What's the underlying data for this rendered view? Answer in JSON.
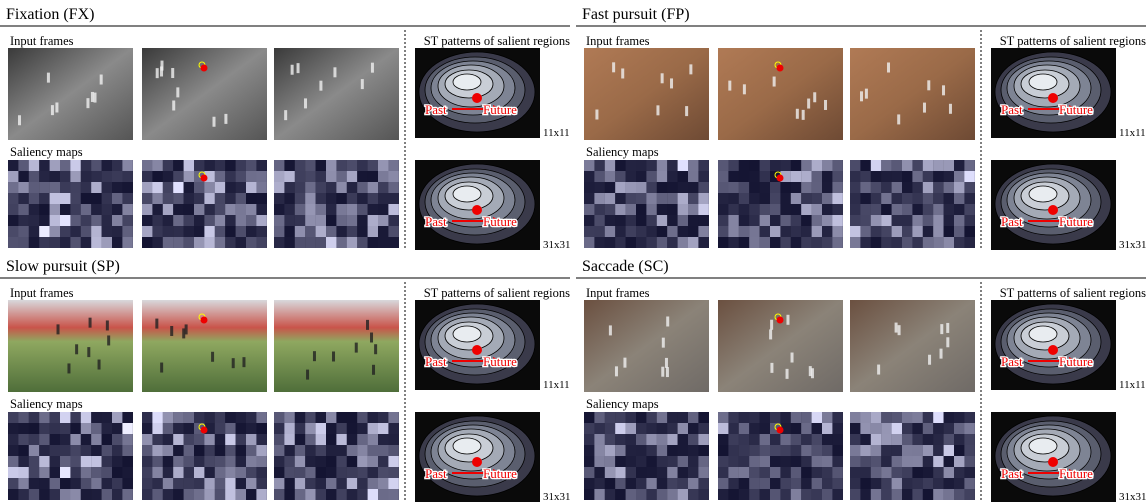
{
  "panels": [
    {
      "title": "Fixation (FX)",
      "input_label": "Input frames",
      "saliency_label": "Saliency maps",
      "st_label": "ST patterns of salient regions",
      "patterns": [
        {
          "past": "Past",
          "future": "Future",
          "size": "11x11"
        },
        {
          "past": "Past",
          "future": "Future",
          "size": "31x31"
        }
      ]
    },
    {
      "title": "Fast pursuit (FP)",
      "input_label": "Input frames",
      "saliency_label": "Saliency maps",
      "st_label": "ST patterns of salient regions",
      "patterns": [
        {
          "past": "Past",
          "future": "Future",
          "size": "11x11"
        },
        {
          "past": "Past",
          "future": "Future",
          "size": "31x31"
        }
      ]
    },
    {
      "title": "Slow pursuit (SP)",
      "input_label": "Input frames",
      "saliency_label": "Saliency maps",
      "st_label": "ST patterns of salient regions",
      "patterns": [
        {
          "past": "Past",
          "future": "Future",
          "size": "11x11"
        },
        {
          "past": "Past",
          "future": "Future",
          "size": "31x31"
        }
      ]
    },
    {
      "title": "Saccade (SC)",
      "input_label": "Input frames",
      "saliency_label": "Saliency maps",
      "st_label": "ST patterns of salient regions",
      "patterns": [
        {
          "past": "Past",
          "future": "Future",
          "size": "11x11"
        },
        {
          "past": "Past",
          "future": "Future",
          "size": "31x31"
        }
      ]
    }
  ]
}
